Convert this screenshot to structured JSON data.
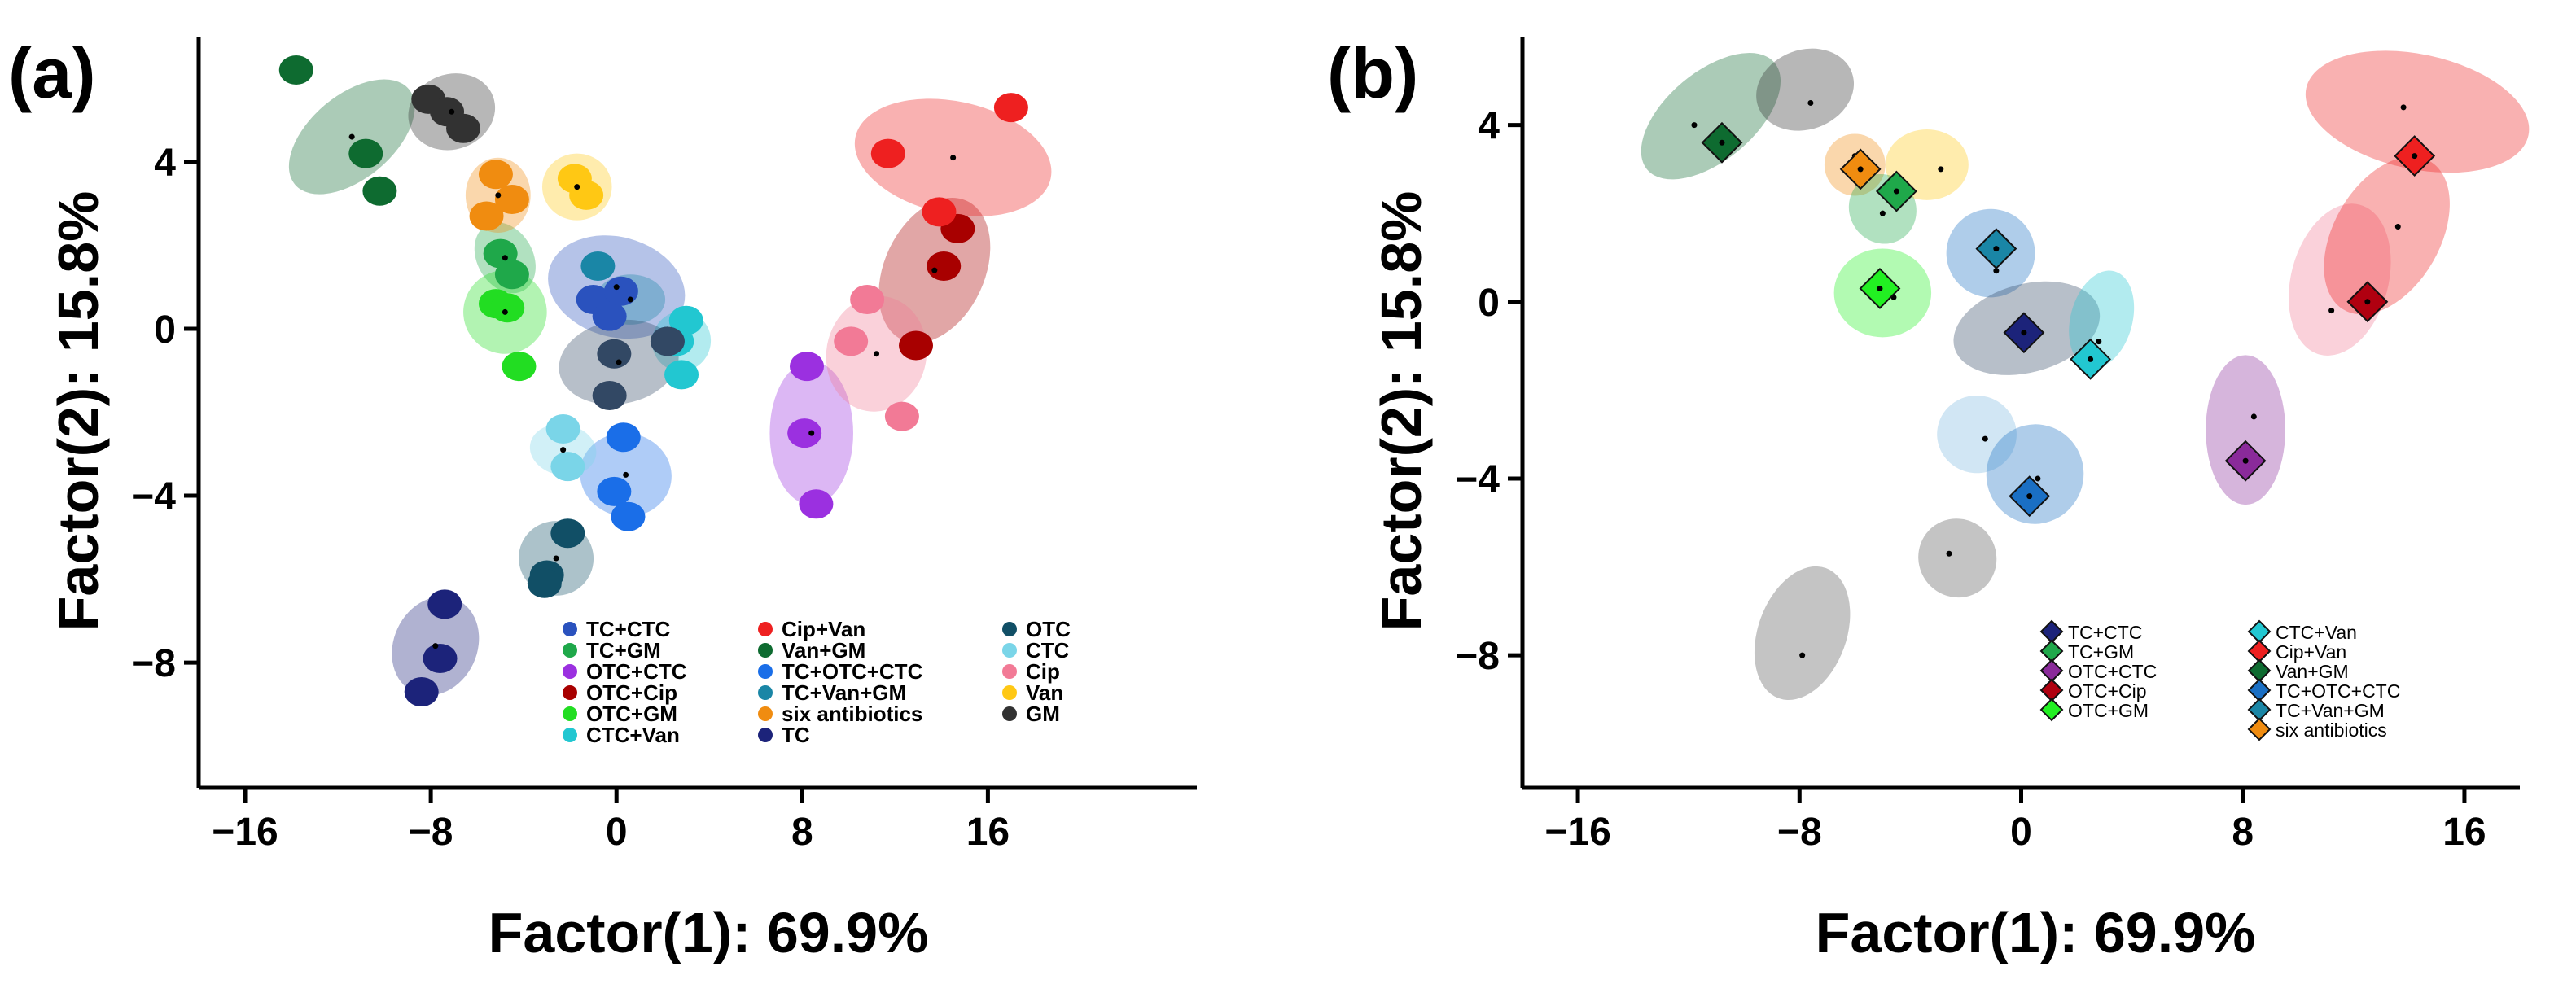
{
  "chart_data": [
    {
      "panel_label": "(a)",
      "type": "scatter",
      "xlabel": "Factor(1): 69.9%",
      "ylabel": "Factor(2): 15.8%",
      "xlim": [
        -18,
        25
      ],
      "ylim": [
        -11,
        7
      ],
      "xticks": [
        -16,
        -8,
        0,
        8,
        16
      ],
      "xtick_labels": [
        "−16",
        "−8",
        "0",
        "8",
        "16"
      ],
      "yticks": [
        -8,
        -4,
        0,
        4
      ],
      "ytick_labels": [
        "−8",
        "−4",
        "0",
        "4"
      ],
      "marker": "circle",
      "ellipse_opacity": 0.35,
      "series": [
        {
          "name": "TC+CTC",
          "color": "#2a52be",
          "points": [
            [
              -1,
              0.7
            ],
            [
              -0.3,
              0.3
            ],
            [
              0.2,
              0.9
            ]
          ],
          "ellipse": {
            "cx": 0,
            "cy": 1,
            "rx": 3,
            "ry": 1.2,
            "angle": 15
          }
        },
        {
          "name": "TC+GM",
          "color": "#1fa84a",
          "points": [
            [
              -5,
              1.8
            ],
            [
              -4.5,
              1.3
            ]
          ],
          "ellipse": {
            "cx": -4.8,
            "cy": 1.7,
            "rx": 1.2,
            "ry": 0.9,
            "angle": -30
          }
        },
        {
          "name": "OTC+CTC",
          "color": "#9b30e0",
          "points": [
            [
              8.2,
              -0.9
            ],
            [
              8.1,
              -2.5
            ],
            [
              8.6,
              -4.2
            ]
          ],
          "ellipse": {
            "cx": 8.4,
            "cy": -2.5,
            "rx": 3.1,
            "ry": 1.0,
            "angle": 90
          }
        },
        {
          "name": "OTC+Cip",
          "color": "#a80000",
          "points": [
            [
              14.7,
              2.4
            ],
            [
              14.1,
              1.5
            ],
            [
              12.9,
              -0.4
            ]
          ],
          "ellipse": {
            "cx": 13.7,
            "cy": 1.4,
            "rx": 3.3,
            "ry": 1.2,
            "angle": -65
          }
        },
        {
          "name": "OTC+GM",
          "color": "#22dd22",
          "points": [
            [
              -5.2,
              0.6
            ],
            [
              -4.7,
              0.5
            ],
            [
              -4.2,
              -0.9
            ]
          ],
          "ellipse": {
            "cx": -4.8,
            "cy": 0.4,
            "rx": 1.8,
            "ry": 1.0,
            "angle": -95
          }
        },
        {
          "name": "CTC+Van",
          "color": "#22c7d1",
          "points": [
            [
              2.6,
              -0.3
            ],
            [
              3.0,
              0.2
            ],
            [
              2.8,
              -1.1
            ]
          ],
          "ellipse": {
            "cx": 2.8,
            "cy": -0.3,
            "rx": 1.3,
            "ry": 0.7,
            "angle": -70
          }
        },
        {
          "name": "Cip+Van",
          "color": "#ee2020",
          "points": [
            [
              11.7,
              4.2
            ],
            [
              13.9,
              2.8
            ],
            [
              17,
              5.3
            ]
          ],
          "ellipse": {
            "cx": 14.5,
            "cy": 4.1,
            "rx": 4.3,
            "ry": 1.35,
            "angle": 12
          }
        },
        {
          "name": "Van+GM",
          "color": "#0e6b30",
          "points": [
            [
              -13.8,
              6.2
            ],
            [
              -10.8,
              4.2
            ],
            [
              -10.2,
              3.3
            ]
          ],
          "ellipse": {
            "cx": -11.4,
            "cy": 4.6,
            "rx": 3.2,
            "ry": 1.0,
            "angle": -40
          }
        },
        {
          "name": "TC+OTC+CTC",
          "color": "#1a6ee8",
          "points": [
            [
              0.3,
              -2.6
            ],
            [
              -0.1,
              -3.9
            ],
            [
              0.5,
              -4.5
            ]
          ],
          "ellipse": {
            "cx": 0.4,
            "cy": -3.5,
            "rx": 1.8,
            "ry": 1.1,
            "angle": -80
          }
        },
        {
          "name": "TC+Van+GM",
          "color": "#1a86a6",
          "points": [
            [
              -0.8,
              1.5
            ],
            [
              2.2,
              -0.3
            ]
          ],
          "ellipse": {
            "cx": 0.6,
            "cy": 0.7,
            "rx": 1.5,
            "ry": 0.6,
            "angle": 0
          }
        },
        {
          "name": "six antibiotics",
          "color": "#f08c10",
          "points": [
            [
              -5.2,
              3.7
            ],
            [
              -4.5,
              3.1
            ],
            [
              -5.6,
              2.7
            ]
          ],
          "ellipse": {
            "cx": -5.1,
            "cy": 3.2,
            "rx": 1.4,
            "ry": 0.9,
            "angle": 0
          }
        },
        {
          "name": "TC",
          "color": "#1c237a",
          "points": [
            [
              -7.4,
              -6.6
            ],
            [
              -7.6,
              -7.9
            ],
            [
              -8.4,
              -8.7
            ]
          ],
          "ellipse": {
            "cx": -7.8,
            "cy": -7.6,
            "rx": 2.2,
            "ry": 1.0,
            "angle": -65
          }
        },
        {
          "name": "OTC",
          "color": "#114f66",
          "points": [
            [
              -2.1,
              -4.9
            ],
            [
              -3.0,
              -5.9
            ],
            [
              -3.1,
              -6.1
            ]
          ],
          "ellipse": {
            "cx": -2.6,
            "cy": -5.5,
            "rx": 1.6,
            "ry": 0.9,
            "angle": -55
          }
        },
        {
          "name": "CTC",
          "color": "#7ad5e8",
          "points": [
            [
              -2.3,
              -2.4
            ],
            [
              -2.1,
              -3.3
            ]
          ],
          "ellipse": {
            "cx": -2.3,
            "cy": -2.9,
            "rx": 1.1,
            "ry": 0.8,
            "angle": -80
          }
        },
        {
          "name": "Cip",
          "color": "#f27a96",
          "points": [
            [
              10.8,
              0.7
            ],
            [
              10.1,
              -0.3
            ],
            [
              12.3,
              -2.1
            ]
          ],
          "ellipse": {
            "cx": 11.2,
            "cy": -0.6,
            "rx": 2.5,
            "ry": 1.2,
            "angle": -80
          }
        },
        {
          "name": "Van",
          "color": "#ffc814",
          "points": [
            [
              -1.8,
              3.6
            ],
            [
              -1.3,
              3.2
            ]
          ],
          "ellipse": {
            "cx": -1.7,
            "cy": 3.4,
            "rx": 1.5,
            "ry": 0.8,
            "angle": 0
          }
        },
        {
          "name": "GM",
          "color": "#323232",
          "points": [
            [
              -8.1,
              5.5
            ],
            [
              -7.3,
              5.2
            ],
            [
              -6.6,
              4.8
            ]
          ],
          "ellipse": {
            "cx": -7.1,
            "cy": 5.2,
            "rx": 1.9,
            "ry": 0.9,
            "angle": -20
          }
        }
      ],
      "extra_ellipses": [
        {
          "color": "#324864",
          "cx": 0.1,
          "cy": -0.8,
          "rx": 2.6,
          "ry": 1.0,
          "angle": -10,
          "points": [
            [
              -0.1,
              -0.6
            ],
            [
              2.2,
              -0.3
            ],
            [
              -0.3,
              -1.6
            ]
          ]
        }
      ],
      "legend": {
        "position": "bottom-right",
        "columns": [
          [
            "TC+CTC",
            "TC+GM",
            "OTC+CTC",
            "OTC+Cip",
            "OTC+GM",
            "CTC+Van"
          ],
          [
            "Cip+Van",
            "Van+GM",
            "TC+OTC+CTC",
            "TC+Van+GM",
            "six antibiotics",
            "TC"
          ],
          [
            "OTC",
            "CTC",
            "Cip",
            "Van",
            "GM"
          ]
        ]
      }
    },
    {
      "panel_label": "(b)",
      "type": "scatter",
      "xlabel": "Factor(1): 69.9%",
      "ylabel": "Factor(2): 15.8%",
      "xlim": [
        -18,
        18
      ],
      "ylim": [
        -11,
        6
      ],
      "xticks": [
        -16,
        -8,
        0,
        8,
        16
      ],
      "xtick_labels": [
        "−16",
        "−8",
        "0",
        "8",
        "16"
      ],
      "yticks": [
        -8,
        -4,
        0,
        4
      ],
      "ytick_labels": [
        "−8",
        "−4",
        "0",
        "4"
      ],
      "marker": "diamond",
      "ellipse_opacity": 0.35,
      "series": [
        {
          "name": "TC+CTC",
          "color": "#1c237a",
          "centroid": [
            0.1,
            -0.7
          ]
        },
        {
          "name": "TC+GM",
          "color": "#1fa84a",
          "centroid": [
            -4.5,
            2.5
          ]
        },
        {
          "name": "OTC+CTC",
          "color": "#8a2a9a",
          "centroid": [
            8.1,
            -3.6
          ]
        },
        {
          "name": "OTC+Cip",
          "color": "#b00010",
          "centroid": [
            12.5,
            0
          ]
        },
        {
          "name": "OTC+GM",
          "color": "#22f022",
          "centroid": [
            -5.1,
            0.3
          ]
        },
        {
          "name": "CTC+Van",
          "color": "#22c7d1",
          "centroid": [
            2.5,
            -1.3
          ]
        },
        {
          "name": "Cip+Van",
          "color": "#ee2020",
          "centroid": [
            14.2,
            3.3
          ]
        },
        {
          "name": "Van+GM",
          "color": "#0e6b30",
          "centroid": [
            -10.8,
            3.6
          ]
        },
        {
          "name": "TC+OTC+CTC",
          "color": "#1a6fc4",
          "centroid": [
            0.3,
            -4.4
          ]
        },
        {
          "name": "TC+Van+GM",
          "color": "#1a86a6",
          "centroid": [
            -0.9,
            1.2
          ]
        },
        {
          "name": "six antibiotics",
          "color": "#f08c10",
          "centroid": [
            -5.8,
            3.0
          ]
        }
      ],
      "ellipses": [
        {
          "color": "#0e6b30",
          "cx": -11.2,
          "cy": 4.2,
          "rx": 3.0,
          "ry": 1.0,
          "angle": -40,
          "dot": [
            -11.8,
            4.0
          ]
        },
        {
          "color": "#323232",
          "cx": -7.8,
          "cy": 4.8,
          "rx": 1.8,
          "ry": 0.9,
          "angle": -20,
          "dot": [
            -7.6,
            4.5
          ]
        },
        {
          "color": "#f08c10",
          "cx": -6.0,
          "cy": 3.1,
          "rx": 1.1,
          "ry": 0.7,
          "angle": 0,
          "dot": [
            -6.0,
            3.3
          ]
        },
        {
          "color": "#ffc814",
          "cx": -3.4,
          "cy": 3.1,
          "rx": 1.5,
          "ry": 0.8,
          "angle": 0,
          "dot": [
            -2.9,
            3.0
          ]
        },
        {
          "color": "#1fa84a",
          "cx": -5.0,
          "cy": 2.1,
          "rx": 1.2,
          "ry": 0.8,
          "angle": -30,
          "dot": [
            -5.0,
            2.0
          ]
        },
        {
          "color": "#1a6fc4",
          "cx": -1.1,
          "cy": 1.1,
          "rx": 1.6,
          "ry": 1.0,
          "angle": -15,
          "dot": [
            -0.9,
            0.7
          ]
        },
        {
          "color": "#22f022",
          "cx": -5.0,
          "cy": 0.2,
          "rx": 1.6,
          "ry": 1.1,
          "angle": -90,
          "dot": [
            -4.6,
            0.1
          ]
        },
        {
          "color": "#324864",
          "cx": 0.2,
          "cy": -0.6,
          "rx": 2.7,
          "ry": 1.0,
          "angle": -15,
          "dot": [
            0.3,
            -0.7
          ]
        },
        {
          "color": "#22c7d1",
          "cx": 2.9,
          "cy": -0.4,
          "rx": 1.8,
          "ry": 0.7,
          "angle": -75,
          "dot": [
            2.8,
            -0.9
          ]
        },
        {
          "color": "#7ab6e0",
          "cx": -1.6,
          "cy": -3.0,
          "rx": 1.4,
          "ry": 0.9,
          "angle": -85,
          "dot": [
            -1.3,
            -3.1
          ]
        },
        {
          "color": "#1a6fc4",
          "cx": 0.5,
          "cy": -3.9,
          "rx": 1.8,
          "ry": 1.1,
          "angle": -80,
          "dot": [
            0.6,
            -4.0
          ]
        },
        {
          "color": "#555555",
          "cx": -2.3,
          "cy": -5.8,
          "rx": 1.4,
          "ry": 0.9,
          "angle": -35,
          "dot": [
            -2.6,
            -5.7
          ]
        },
        {
          "color": "#555555",
          "cx": -7.9,
          "cy": -7.5,
          "rx": 2.5,
          "ry": 1.0,
          "angle": -70,
          "dot": [
            -7.9,
            -8.0
          ]
        },
        {
          "color": "#8a2a9a",
          "cx": 8.1,
          "cy": -2.9,
          "rx": 2.7,
          "ry": 0.9,
          "angle": 90,
          "dot": [
            8.4,
            -2.6
          ]
        },
        {
          "color": "#f27a96",
          "cx": 11.5,
          "cy": 0.5,
          "rx": 2.8,
          "ry": 1.1,
          "angle": -75,
          "dot": [
            11.2,
            -0.2
          ]
        },
        {
          "color": "#ee2020",
          "cx": 13.2,
          "cy": 1.5,
          "rx": 3.1,
          "ry": 1.2,
          "angle": -60,
          "dot": [
            13.6,
            1.7
          ]
        },
        {
          "color": "#ee2020",
          "cx": 14.3,
          "cy": 4.3,
          "rx": 4.1,
          "ry": 1.3,
          "angle": 12,
          "dot": [
            13.8,
            4.4
          ]
        }
      ],
      "legend": {
        "position": "bottom-right",
        "columns": [
          [
            "TC+CTC",
            "TC+GM",
            "OTC+CTC",
            "OTC+Cip",
            "OTC+GM"
          ],
          [
            "CTC+Van",
            "Cip+Van",
            "Van+GM",
            "TC+OTC+CTC",
            "TC+Van+GM",
            "six antibiotics"
          ]
        ]
      }
    }
  ]
}
